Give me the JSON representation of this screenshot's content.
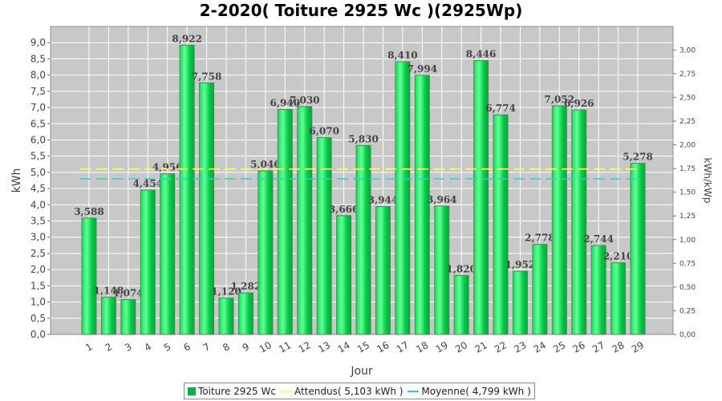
{
  "chart_data": {
    "type": "bar",
    "title": "2-2020( Toiture 2925 Wc )(2925Wp)",
    "xlabel": "Jour",
    "ylabel": "kWh",
    "ylabel_right": "kWh/kWp",
    "categories": [
      "1",
      "2",
      "3",
      "4",
      "5",
      "6",
      "7",
      "8",
      "9",
      "10",
      "11",
      "12",
      "13",
      "14",
      "15",
      "16",
      "17",
      "18",
      "19",
      "20",
      "21",
      "22",
      "23",
      "24",
      "25",
      "26",
      "27",
      "28",
      "29"
    ],
    "series": [
      {
        "name": "Toiture 2925 Wc",
        "values": [
          3.588,
          1.148,
          1.074,
          4.454,
          4.956,
          8.922,
          7.758,
          1.12,
          1.282,
          5.046,
          6.94,
          7.03,
          6.07,
          3.666,
          5.83,
          3.944,
          8.41,
          7.994,
          3.964,
          1.82,
          8.446,
          6.774,
          1.952,
          2.778,
          7.052,
          6.926,
          2.744,
          2.21,
          5.278
        ],
        "labels": [
          "3,588",
          "1,148",
          "1,074",
          "4,454",
          "4,956",
          "8,922",
          "7,758",
          "1,120",
          "1,282",
          "5,046",
          "6,940",
          "7,030",
          "6,070",
          "3,666",
          "5,830",
          "3,944",
          "8,410",
          "7,994",
          "3,964",
          "1,820",
          "8,446",
          "6,774",
          "1,952",
          "2,778",
          "7,052",
          "6,926",
          "2,744",
          "2,210",
          "5,278"
        ],
        "color": "#00cc44"
      }
    ],
    "reference_lines": [
      {
        "name": "Attendus( 5,103 kWh )",
        "value": 5.103,
        "color": "#ffff66"
      },
      {
        "name": "Moyenne( 4,799 kWh )",
        "value": 4.799,
        "color": "#33cccc"
      }
    ],
    "ylim": [
      0,
      9.5
    ],
    "y_ticks": [
      "0,0",
      "0,5",
      "1,0",
      "1,5",
      "2,0",
      "2,5",
      "3,0",
      "3,5",
      "4,0",
      "4,5",
      "5,0",
      "5,5",
      "6,0",
      "6,5",
      "7,0",
      "7,5",
      "8,0",
      "8,5",
      "9,0"
    ],
    "y2lim": [
      0,
      3.248
    ],
    "y2_ticks": [
      "0,00",
      "0,25",
      "0,50",
      "0,75",
      "1,00",
      "1,25",
      "1,50",
      "1,75",
      "2,00",
      "2,25",
      "2,50",
      "2,75",
      "3,00"
    ],
    "grid": true,
    "legend_position": "bottom"
  }
}
